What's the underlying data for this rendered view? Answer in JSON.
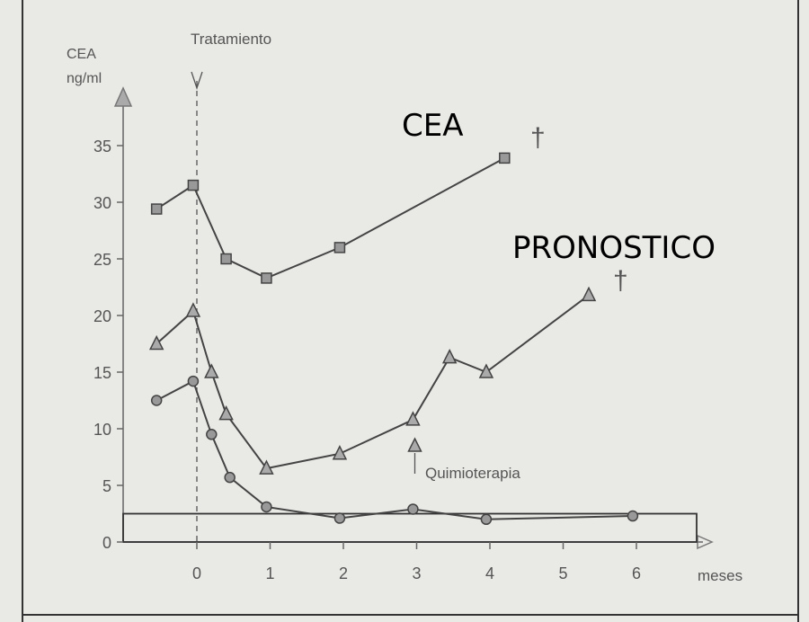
{
  "chart_data": {
    "type": "line",
    "y_axis_label": [
      "CEA",
      "ng/ml"
    ],
    "x_axis_label": "meses",
    "ylim": [
      0,
      38
    ],
    "xlim": [
      -0.9,
      7.0
    ],
    "y_ticks": [
      0,
      5,
      10,
      15,
      20,
      25,
      30,
      35
    ],
    "x_ticks": [
      0,
      1,
      2,
      3,
      4,
      5,
      6
    ],
    "grid": false,
    "treatment_label": "Tratamiento",
    "treatment_x": 0,
    "chemo_label": "Quimioterapia",
    "chemo_x": 3,
    "reference_level": 2.5,
    "overlay_text": [
      "CEA",
      "PRONOSTICO"
    ],
    "death_marks": [
      "†",
      "†"
    ],
    "series": [
      {
        "marker": "square",
        "points": [
          [
            -0.55,
            29.4
          ],
          [
            -0.05,
            31.5
          ],
          [
            0.4,
            25.0
          ],
          [
            0.95,
            23.3
          ],
          [
            1.95,
            26.0
          ],
          [
            4.2,
            33.9
          ]
        ]
      },
      {
        "marker": "triangle",
        "points": [
          [
            -0.55,
            17.5
          ],
          [
            -0.05,
            20.4
          ],
          [
            0.2,
            15.0
          ],
          [
            0.4,
            11.3
          ],
          [
            0.95,
            6.5
          ],
          [
            1.95,
            7.8
          ],
          [
            2.95,
            10.8
          ],
          [
            3.45,
            16.3
          ],
          [
            3.95,
            15.0
          ],
          [
            5.35,
            21.8
          ]
        ]
      },
      {
        "marker": "circle",
        "points": [
          [
            -0.55,
            12.5
          ],
          [
            -0.05,
            14.2
          ],
          [
            0.2,
            9.5
          ],
          [
            0.45,
            5.7
          ],
          [
            0.95,
            3.1
          ],
          [
            1.95,
            2.1
          ],
          [
            2.95,
            2.9
          ],
          [
            3.95,
            2.0
          ],
          [
            5.95,
            2.3
          ]
        ]
      }
    ]
  }
}
